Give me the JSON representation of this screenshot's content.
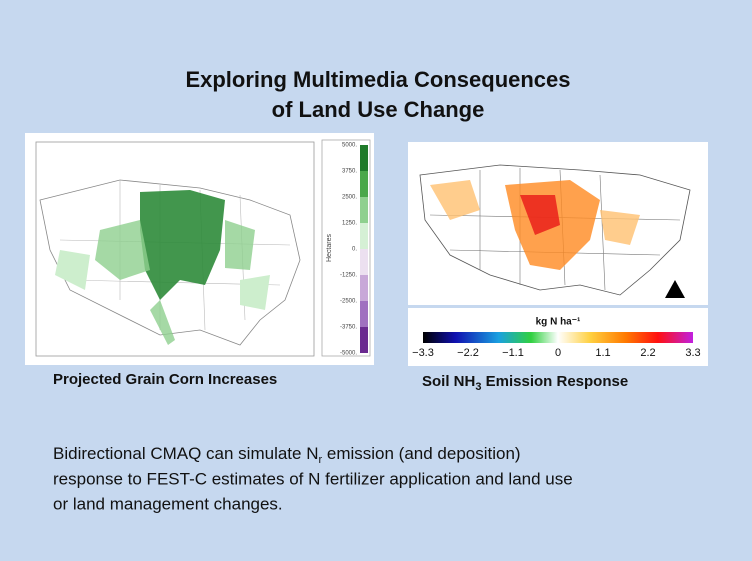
{
  "slide": {
    "title": [
      "Exploring Multimedia Consequences",
      "of Land Use Change"
    ],
    "left_panel": {
      "caption": "Projected Grain Corn Increases",
      "colorbar_title": "Hectares",
      "colorbar_labels": [
        "5000.",
        "3750.",
        "2500.",
        "1250.",
        "0.",
        "-1250.",
        "-2500.",
        "-3750.",
        "-5000."
      ]
    },
    "right_panel": {
      "caption": {
        "prefix": "Soil NH",
        "sub": "3",
        "suffix": " Emission Response"
      },
      "colorbar_title": "kg N ha⁻¹",
      "colorbar_labels": [
        "−3.3",
        "−2.2",
        "−1.1",
        "0",
        "1.1",
        "2.2",
        "3.3"
      ]
    },
    "body": {
      "line1": {
        "prefix": "Bidirectional CMAQ can simulate N",
        "sub": "r",
        "suffix": " emission (and deposition)"
      },
      "line2": "response to FEST-C estimates of N fertilizer application and land use",
      "line3": "or land management changes."
    }
  }
}
